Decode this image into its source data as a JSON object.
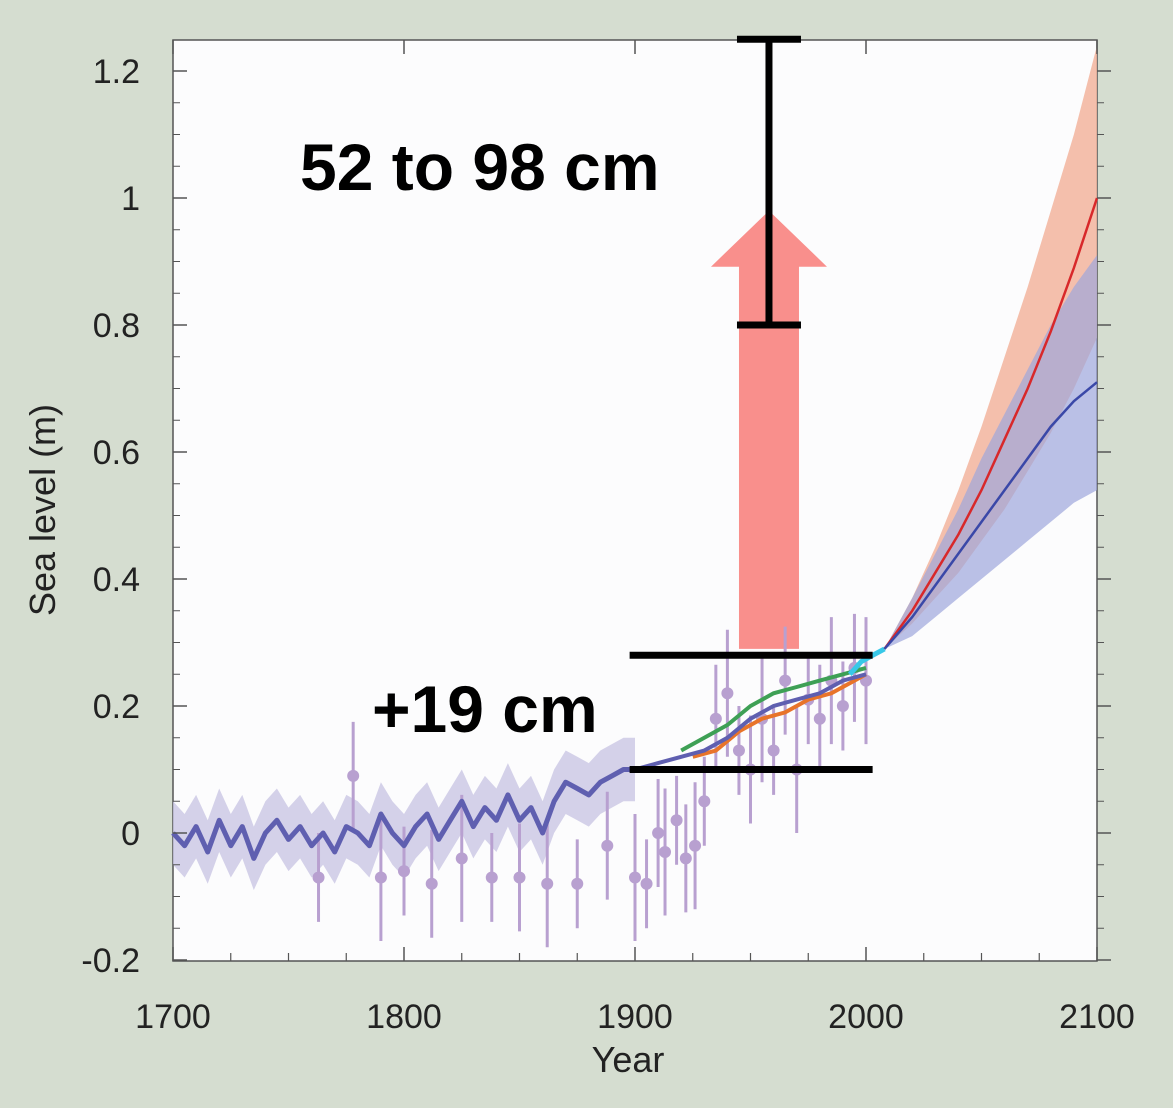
{
  "chart_data": {
    "type": "line",
    "title": "",
    "xlabel": "Year",
    "ylabel": "Sea  level (m)",
    "xlim": [
      1700,
      2100
    ],
    "ylim": [
      -0.2,
      1.25
    ],
    "x_ticks": [
      "1700",
      "1800",
      "1900",
      "2000",
      "2100"
    ],
    "y_ticks": [
      "-0.2",
      "0",
      "0.2",
      "0.4",
      "0.6",
      "0.8",
      "1",
      "1.2"
    ],
    "grid": false,
    "legend": "none",
    "colors": {
      "background": "#d5ddd0",
      "plot_bg": "#fcfcfd",
      "reconstruction": "#5f5fb0",
      "reconstruction_band": "#c9c6e4",
      "proxy_points": "#b8a0d0",
      "gauge_green": "#3ea055",
      "gauge_orange": "#e8742a",
      "satellite_cyan": "#38c8e8",
      "high_scenario": "#d8282a",
      "high_band": "#f2b49e",
      "low_scenario": "#3a48a8",
      "low_band": "#9ea6dc",
      "arrow": "#f98f8c"
    },
    "series": [
      {
        "x": [
          1700,
          1705,
          1710,
          1715,
          1720,
          1725,
          1730,
          1735,
          1740,
          1745,
          1750,
          1755,
          1760,
          1765,
          1770,
          1775,
          1780,
          1785,
          1790,
          1795,
          1800,
          1805,
          1810,
          1815,
          1820,
          1825,
          1830,
          1835,
          1840,
          1845,
          1850,
          1855,
          1860,
          1865,
          1870,
          1875,
          1880,
          1885,
          1890,
          1895,
          1900
        ],
        "values": [
          0,
          -0.02,
          0.01,
          -0.03,
          0.02,
          -0.02,
          0.01,
          -0.04,
          0.0,
          0.02,
          -0.01,
          0.01,
          -0.02,
          0.0,
          -0.03,
          0.01,
          0.0,
          -0.02,
          0.03,
          0.0,
          -0.02,
          0.01,
          0.03,
          -0.01,
          0.02,
          0.05,
          0.01,
          0.04,
          0.02,
          0.06,
          0.02,
          0.04,
          0.0,
          0.05,
          0.08,
          0.07,
          0.06,
          0.08,
          0.09,
          0.1,
          0.1
        ]
      },
      {
        "x": [
          1900,
          1910,
          1920,
          1930,
          1940,
          1950,
          1960,
          1970,
          1980,
          1990,
          2000
        ],
        "values": [
          0.1,
          0.11,
          0.12,
          0.13,
          0.15,
          0.18,
          0.2,
          0.21,
          0.22,
          0.24,
          0.25
        ]
      },
      {
        "x": [
          1920,
          1930,
          1940,
          1950,
          1960,
          1970,
          1980,
          1990,
          2000
        ],
        "values": [
          0.13,
          0.15,
          0.17,
          0.2,
          0.22,
          0.23,
          0.24,
          0.25,
          0.26
        ]
      },
      {
        "x": [
          1925,
          1935,
          1945,
          1955,
          1965,
          1975,
          1985,
          1995,
          2000
        ],
        "values": [
          0.12,
          0.13,
          0.16,
          0.18,
          0.19,
          0.21,
          0.22,
          0.24,
          0.25
        ]
      },
      {
        "x": [
          1993,
          1998,
          2003,
          2008
        ],
        "values": [
          0.25,
          0.27,
          0.28,
          0.29
        ]
      },
      {
        "x": [
          2008,
          2020,
          2030,
          2040,
          2050,
          2060,
          2070,
          2080,
          2090,
          2100
        ],
        "values": [
          0.29,
          0.35,
          0.41,
          0.47,
          0.54,
          0.62,
          0.7,
          0.79,
          0.89,
          1.0
        ],
        "band_low": [
          0.29,
          0.33,
          0.37,
          0.41,
          0.46,
          0.51,
          0.57,
          0.63,
          0.7,
          0.78
        ],
        "band_high": [
          0.29,
          0.37,
          0.45,
          0.54,
          0.64,
          0.75,
          0.86,
          0.98,
          1.1,
          1.24
        ]
      },
      {
        "x": [
          2008,
          2020,
          2030,
          2040,
          2050,
          2060,
          2070,
          2080,
          2090,
          2100
        ],
        "values": [
          0.29,
          0.34,
          0.39,
          0.44,
          0.49,
          0.54,
          0.59,
          0.64,
          0.68,
          0.71
        ],
        "band_low": [
          0.29,
          0.31,
          0.34,
          0.37,
          0.4,
          0.43,
          0.46,
          0.49,
          0.52,
          0.54
        ],
        "band_high": [
          0.29,
          0.37,
          0.44,
          0.51,
          0.59,
          0.66,
          0.73,
          0.8,
          0.86,
          0.91
        ]
      }
    ],
    "proxy_points": {
      "x": [
        1763,
        1778,
        1790,
        1800,
        1812,
        1825,
        1838,
        1850,
        1862,
        1875,
        1888,
        1900,
        1905,
        1910,
        1913,
        1918,
        1922,
        1926,
        1930,
        1935,
        1940,
        1945,
        1950,
        1955,
        1960,
        1965,
        1970,
        1975,
        1980,
        1985,
        1990,
        1995,
        2000
      ],
      "values": [
        -0.07,
        0.09,
        -0.07,
        -0.06,
        -0.08,
        -0.04,
        -0.07,
        -0.07,
        -0.08,
        -0.08,
        -0.02,
        -0.07,
        -0.08,
        0.0,
        -0.03,
        0.02,
        -0.04,
        -0.02,
        0.05,
        0.18,
        0.22,
        0.13,
        0.1,
        0.18,
        0.13,
        0.24,
        0.1,
        0.21,
        0.18,
        0.24,
        0.2,
        0.26,
        0.24
      ]
    },
    "annotations": {
      "rise_label": "52 to 98 cm",
      "historic_label": "+19 cm",
      "rise_range": [
        0.8,
        1.25
      ],
      "historic_range": [
        0.1,
        0.28
      ],
      "rise_x": 1958,
      "historic_x_range": [
        1902,
        2002
      ],
      "arrow_x": 1958,
      "arrow_from": 0.29,
      "arrow_to": 0.98
    }
  }
}
